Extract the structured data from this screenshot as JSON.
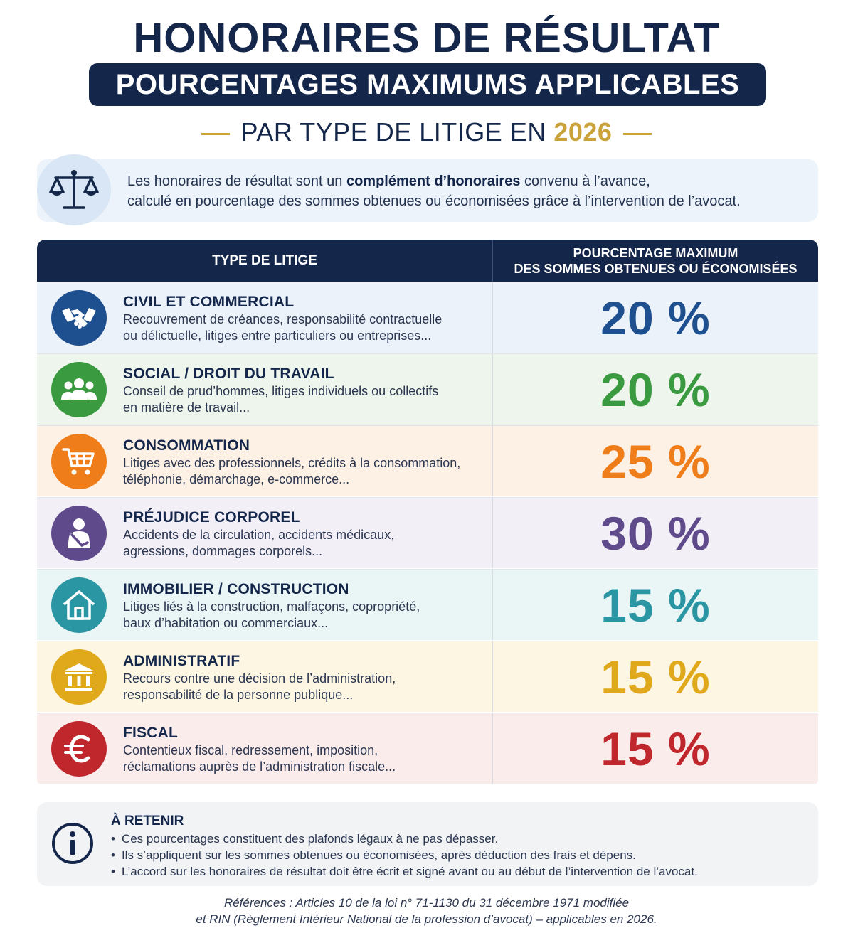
{
  "header": {
    "title": "HONORAIRES DE RÉSULTAT",
    "banner": "POURCENTAGES MAXIMUMS APPLICABLES",
    "subtitle_prefix": "PAR TYPE DE LITIGE EN",
    "subtitle_year": "2026"
  },
  "intro": {
    "icon": "scales-icon",
    "part1": "Les honoraires de résultat sont un ",
    "bold": "complément d’honoraires",
    "part2": " convenu à l’avance,",
    "line2": "calculé en pourcentage des sommes obtenues ou économisées grâce à l’intervention de l’avocat."
  },
  "table": {
    "col1": "TYPE DE LITIGE",
    "col2": "POURCENTAGE MAXIMUM\nDES SOMMES OBTENUES OU ÉCONOMISÉES",
    "rows": [
      {
        "title": "CIVIL ET COMMERCIAL",
        "desc1": "Recouvrement de créances, responsabilité contractuelle",
        "desc2": "ou délictuelle, litiges entre particuliers ou entreprises...",
        "pct": "20 %",
        "color": "#1e4f8f",
        "bg": "#ebf2fa",
        "icon": "handshake-icon"
      },
      {
        "title": "SOCIAL / DROIT DU TRAVAIL",
        "desc1": "Conseil de prud’hommes, litiges individuels ou collectifs",
        "desc2": "en matière de travail...",
        "pct": "20 %",
        "color": "#3a9a3f",
        "bg": "#eef5ec",
        "icon": "group-icon"
      },
      {
        "title": "CONSOMMATION",
        "desc1": "Litiges avec des professionnels, crédits à la consommation,",
        "desc2": "téléphonie, démarchage, e-commerce...",
        "pct": "25 %",
        "color": "#ef7d1a",
        "bg": "#fdf1e6",
        "icon": "shopping-cart-icon"
      },
      {
        "title": "PRÉJUDICE CORPOREL",
        "desc1": "Accidents de la circulation, accidents médicaux,",
        "desc2": "agressions, dommages corporels...",
        "pct": "30 %",
        "color": "#5f4a8b",
        "bg": "#f2eff7",
        "icon": "injured-person-icon"
      },
      {
        "title": "IMMOBILIER / CONSTRUCTION",
        "desc1": "Litiges liés à la construction, malfaçons, copropriété,",
        "desc2": "baux d’habitation ou commerciaux...",
        "pct": "15 %",
        "color": "#2b96a3",
        "bg": "#eaf5f5",
        "icon": "house-icon"
      },
      {
        "title": "ADMINISTRATIF",
        "desc1": "Recours contre une décision de l’administration,",
        "desc2": "responsabilité de la personne publique...",
        "pct": "15 %",
        "color": "#e0a91c",
        "bg": "#fdf6e3",
        "icon": "government-building-icon"
      },
      {
        "title": "FISCAL",
        "desc1": "Contentieux fiscal, redressement, imposition,",
        "desc2": "réclamations auprès de l’administration fiscale...",
        "pct": "15 %",
        "color": "#c0272d",
        "bg": "#fbecec",
        "icon": "euro-icon"
      }
    ]
  },
  "retenir": {
    "icon": "info-icon",
    "title": "À RETENIR",
    "items": [
      "Ces pourcentages constituent des plafonds légaux à ne pas dépasser.",
      "Ils s’appliquent sur les sommes obtenues ou économisées, après déduction des frais et dépens.",
      "L’accord sur les honoraires de résultat doit être écrit et signé avant ou au début de l’intervention de l’avocat."
    ]
  },
  "references": {
    "line1": "Références : Articles 10 de la loi n° 71-1130 du 31 décembre 1971 modifiée",
    "line2": "et RIN (Règlement Intérieur National de la profession d’avocat) – applicables en 2026."
  }
}
